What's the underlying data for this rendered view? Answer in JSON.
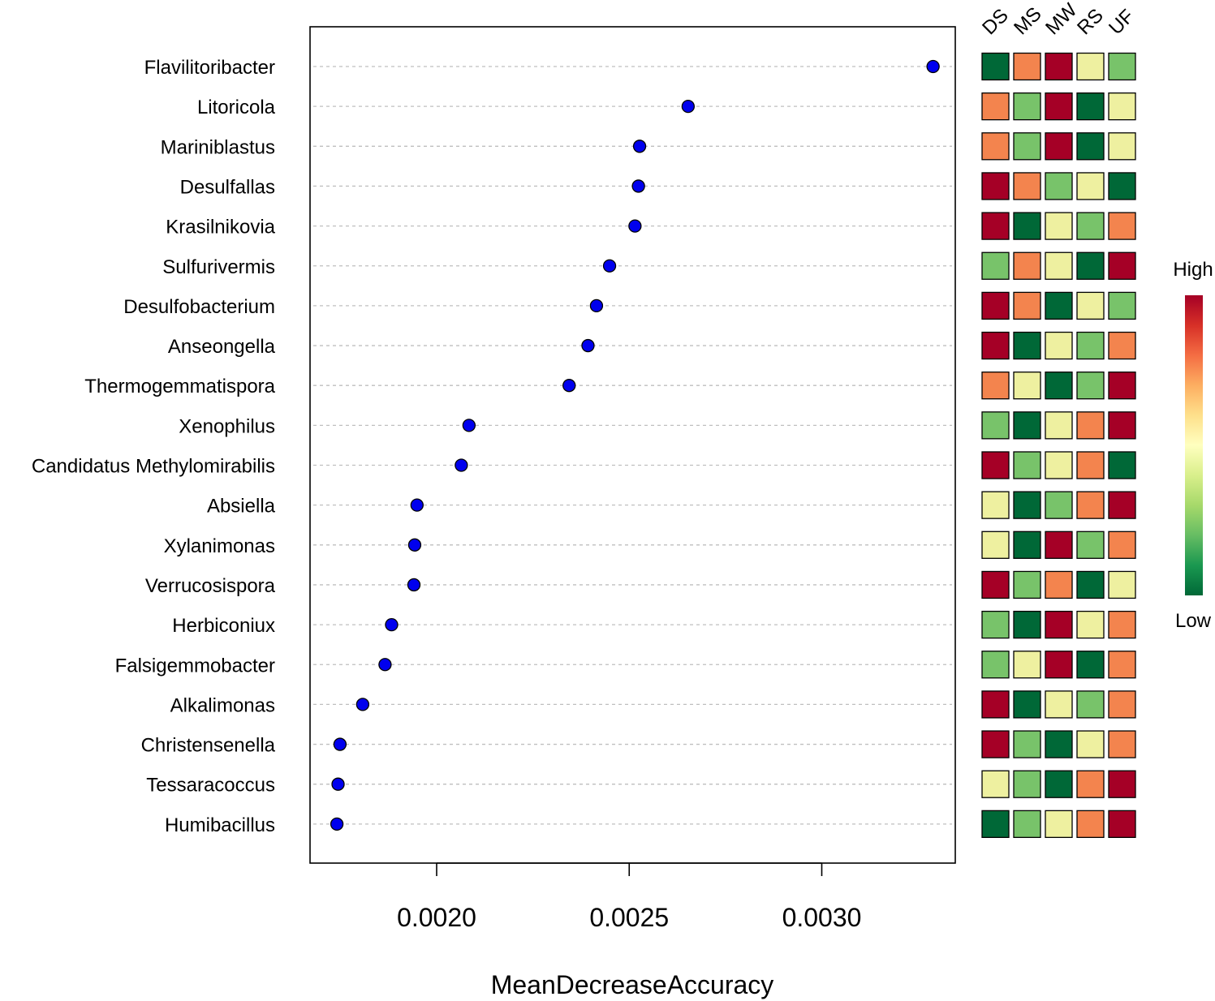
{
  "chart_data": {
    "type": "scatter",
    "subtype": "dotchart-with-heatmap",
    "xlabel": "MeanDecreaseAccuracy",
    "ylabel": "",
    "xlim": [
      0.00167,
      0.00335
    ],
    "xticks": [
      0.002,
      0.0025,
      0.003
    ],
    "xtick_labels": [
      "0.0020",
      "0.0025",
      "0.0030"
    ],
    "grid": "horizontal-dashed",
    "marker_color": "#0000ee",
    "categories": [
      "Flavilitoribacter",
      "Litoricola",
      "Mariniblastus",
      "Desulfallas",
      "Krasilnikovia",
      "Sulfurivermis",
      "Desulfobacterium",
      "Anseongella",
      "Thermogemmatispora",
      "Xenophilus",
      "Candidatus Methylomirabilis",
      "Absiella",
      "Xylanimonas",
      "Verrucosispora",
      "Herbiconiux",
      "Falsigemmobacter",
      "Alkalimonas",
      "Christensenella",
      "Tessaracoccus",
      "Humibacillus"
    ],
    "values": [
      0.003289,
      0.002653,
      0.002527,
      0.002524,
      0.002515,
      0.002449,
      0.002415,
      0.002393,
      0.002344,
      0.002084,
      0.002064,
      0.001949,
      0.001943,
      0.001941,
      0.001883,
      0.001866,
      0.001808,
      0.001749,
      0.001744,
      0.001741
    ],
    "heatmap": {
      "columns": [
        "DS",
        "MS",
        "MW",
        "RS",
        "UF"
      ],
      "scale": [
        "#006837",
        "#78c36a",
        "#eef0a0",
        "#f3844e",
        "#a50026"
      ],
      "levels": [
        [
          0,
          3,
          4,
          2,
          1
        ],
        [
          3,
          1,
          4,
          0,
          2
        ],
        [
          3,
          1,
          4,
          0,
          2
        ],
        [
          4,
          3,
          1,
          2,
          0
        ],
        [
          4,
          0,
          2,
          1,
          3
        ],
        [
          1,
          3,
          2,
          0,
          4
        ],
        [
          4,
          3,
          0,
          2,
          1
        ],
        [
          4,
          0,
          2,
          1,
          3
        ],
        [
          3,
          2,
          0,
          1,
          4
        ],
        [
          1,
          0,
          2,
          3,
          4
        ],
        [
          4,
          1,
          2,
          3,
          0
        ],
        [
          2,
          0,
          1,
          3,
          4
        ],
        [
          2,
          0,
          4,
          1,
          3
        ],
        [
          4,
          1,
          3,
          0,
          2
        ],
        [
          1,
          0,
          4,
          2,
          3
        ],
        [
          1,
          2,
          4,
          0,
          3
        ],
        [
          4,
          0,
          2,
          1,
          3
        ],
        [
          4,
          1,
          0,
          2,
          3
        ],
        [
          2,
          1,
          0,
          3,
          4
        ],
        [
          0,
          1,
          2,
          3,
          4
        ]
      ]
    },
    "legend": {
      "high_label": "High",
      "low_label": "Low",
      "gradient": [
        "#a50026",
        "#d73027",
        "#f46d43",
        "#fdae61",
        "#fee08b",
        "#ffffbf",
        "#d9ef8b",
        "#a6d96a",
        "#66bd63",
        "#1a9850",
        "#006837"
      ]
    }
  }
}
